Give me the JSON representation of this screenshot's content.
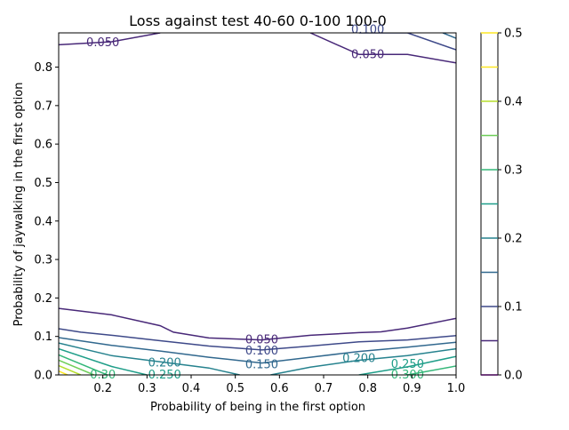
{
  "chart_data": {
    "type": "contour",
    "title": "Loss against test 40-60 0-100 100-0",
    "xlabel": "Probability of being in the first option",
    "ylabel": "Probability of jaywalking in the first option",
    "xlim": [
      0.1,
      1.0
    ],
    "ylim": [
      0.0,
      0.889
    ],
    "x_ticks": [
      "0.2",
      "0.3",
      "0.4",
      "0.5",
      "0.6",
      "0.7",
      "0.8",
      "0.9",
      "1.0"
    ],
    "y_ticks": [
      "0.0",
      "0.1",
      "0.2",
      "0.3",
      "0.4",
      "0.5",
      "0.6",
      "0.7",
      "0.8"
    ],
    "levels": [
      0.0,
      0.05,
      0.1,
      0.15,
      0.2,
      0.25,
      0.3,
      0.35,
      0.4,
      0.45,
      0.5
    ],
    "level_colors": [
      "#440154",
      "#482878",
      "#3e4989",
      "#31688e",
      "#26828e",
      "#1f9e89",
      "#35b779",
      "#6ece58",
      "#b5de2b",
      "#fde725",
      "#fde725"
    ],
    "colorbar_ticks": [
      "0.0",
      "0.1",
      "0.2",
      "0.3",
      "0.4",
      "0.5"
    ],
    "grid": false,
    "contour_lines": [
      {
        "level": 0.05,
        "points": [
          [
            0.1,
            0.173
          ],
          [
            0.22,
            0.156
          ],
          [
            0.33,
            0.128
          ],
          [
            0.36,
            0.111
          ],
          [
            0.44,
            0.096
          ],
          [
            0.56,
            0.091
          ],
          [
            0.67,
            0.103
          ],
          [
            0.78,
            0.11
          ],
          [
            0.83,
            0.112
          ],
          [
            0.89,
            0.122
          ],
          [
            1.0,
            0.147
          ]
        ]
      },
      {
        "level": 0.05,
        "points": [
          [
            0.1,
            0.858
          ],
          [
            0.22,
            0.866
          ],
          [
            0.33,
            0.889
          ]
        ]
      },
      {
        "level": 0.05,
        "points": [
          [
            0.67,
            0.889
          ],
          [
            0.78,
            0.833
          ],
          [
            0.89,
            0.833
          ],
          [
            1.0,
            0.811
          ]
        ]
      },
      {
        "level": 0.1,
        "points": [
          [
            0.1,
            0.12
          ],
          [
            0.15,
            0.111
          ],
          [
            0.22,
            0.103
          ],
          [
            0.33,
            0.089
          ],
          [
            0.44,
            0.075
          ],
          [
            0.56,
            0.065
          ],
          [
            0.67,
            0.075
          ],
          [
            0.78,
            0.086
          ],
          [
            0.89,
            0.091
          ],
          [
            1.0,
            0.102
          ]
        ]
      },
      {
        "level": 0.1,
        "points": [
          [
            0.78,
            0.889
          ],
          [
            0.89,
            0.889
          ],
          [
            1.0,
            0.845
          ]
        ]
      },
      {
        "level": 0.15,
        "points": [
          [
            0.1,
            0.097
          ],
          [
            0.22,
            0.077
          ],
          [
            0.33,
            0.062
          ],
          [
            0.44,
            0.046
          ],
          [
            0.56,
            0.031
          ],
          [
            0.67,
            0.046
          ],
          [
            0.78,
            0.061
          ],
          [
            0.89,
            0.072
          ],
          [
            1.0,
            0.085
          ]
        ]
      },
      {
        "level": 0.15,
        "points": [
          [
            0.97,
            0.889
          ],
          [
            1.0,
            0.875
          ]
        ]
      },
      {
        "level": 0.2,
        "points": [
          [
            0.1,
            0.083
          ],
          [
            0.22,
            0.05
          ],
          [
            0.33,
            0.034
          ],
          [
            0.44,
            0.018
          ],
          [
            0.51,
            0.0
          ]
        ]
      },
      {
        "level": 0.2,
        "points": [
          [
            0.58,
            0.0
          ],
          [
            0.67,
            0.02
          ],
          [
            0.78,
            0.038
          ],
          [
            0.89,
            0.05
          ],
          [
            1.0,
            0.068
          ]
        ]
      },
      {
        "level": 0.25,
        "points": [
          [
            0.1,
            0.068
          ],
          [
            0.22,
            0.022
          ],
          [
            0.3,
            0.0
          ]
        ]
      },
      {
        "level": 0.25,
        "points": [
          [
            0.78,
            0.0
          ],
          [
            0.89,
            0.021
          ],
          [
            1.0,
            0.048
          ]
        ]
      },
      {
        "level": 0.3,
        "points": [
          [
            0.1,
            0.052
          ],
          [
            0.21,
            0.0
          ]
        ]
      },
      {
        "level": 0.3,
        "points": [
          [
            0.89,
            0.0
          ],
          [
            1.0,
            0.023
          ]
        ]
      },
      {
        "level": 0.35,
        "points": [
          [
            0.1,
            0.038
          ],
          [
            0.18,
            0.0
          ]
        ]
      },
      {
        "level": 0.4,
        "points": [
          [
            0.1,
            0.024
          ],
          [
            0.15,
            0.0
          ]
        ]
      },
      {
        "level": 0.45,
        "points": [
          [
            0.1,
            0.01
          ],
          [
            0.12,
            0.0
          ]
        ]
      }
    ],
    "contour_labels": [
      {
        "text": "0.050",
        "x": 0.2,
        "y": 0.864
      },
      {
        "text": "0.100",
        "x": 0.8,
        "y": 0.897
      },
      {
        "text": "0.050",
        "x": 0.8,
        "y": 0.833
      },
      {
        "text": "0.050",
        "x": 0.56,
        "y": 0.091
      },
      {
        "text": "0.100",
        "x": 0.56,
        "y": 0.062
      },
      {
        "text": "0.150",
        "x": 0.56,
        "y": 0.026
      },
      {
        "text": "0.200",
        "x": 0.34,
        "y": 0.031
      },
      {
        "text": "0.250",
        "x": 0.34,
        "y": 0.0
      },
      {
        "text": "0.200",
        "x": 0.78,
        "y": 0.043
      },
      {
        "text": "0.250",
        "x": 0.89,
        "y": 0.028
      },
      {
        "text": "0.300",
        "x": 0.89,
        "y": 0.0
      },
      {
        "text": "0.30",
        "x": 0.2,
        "y": 0.0
      }
    ]
  }
}
